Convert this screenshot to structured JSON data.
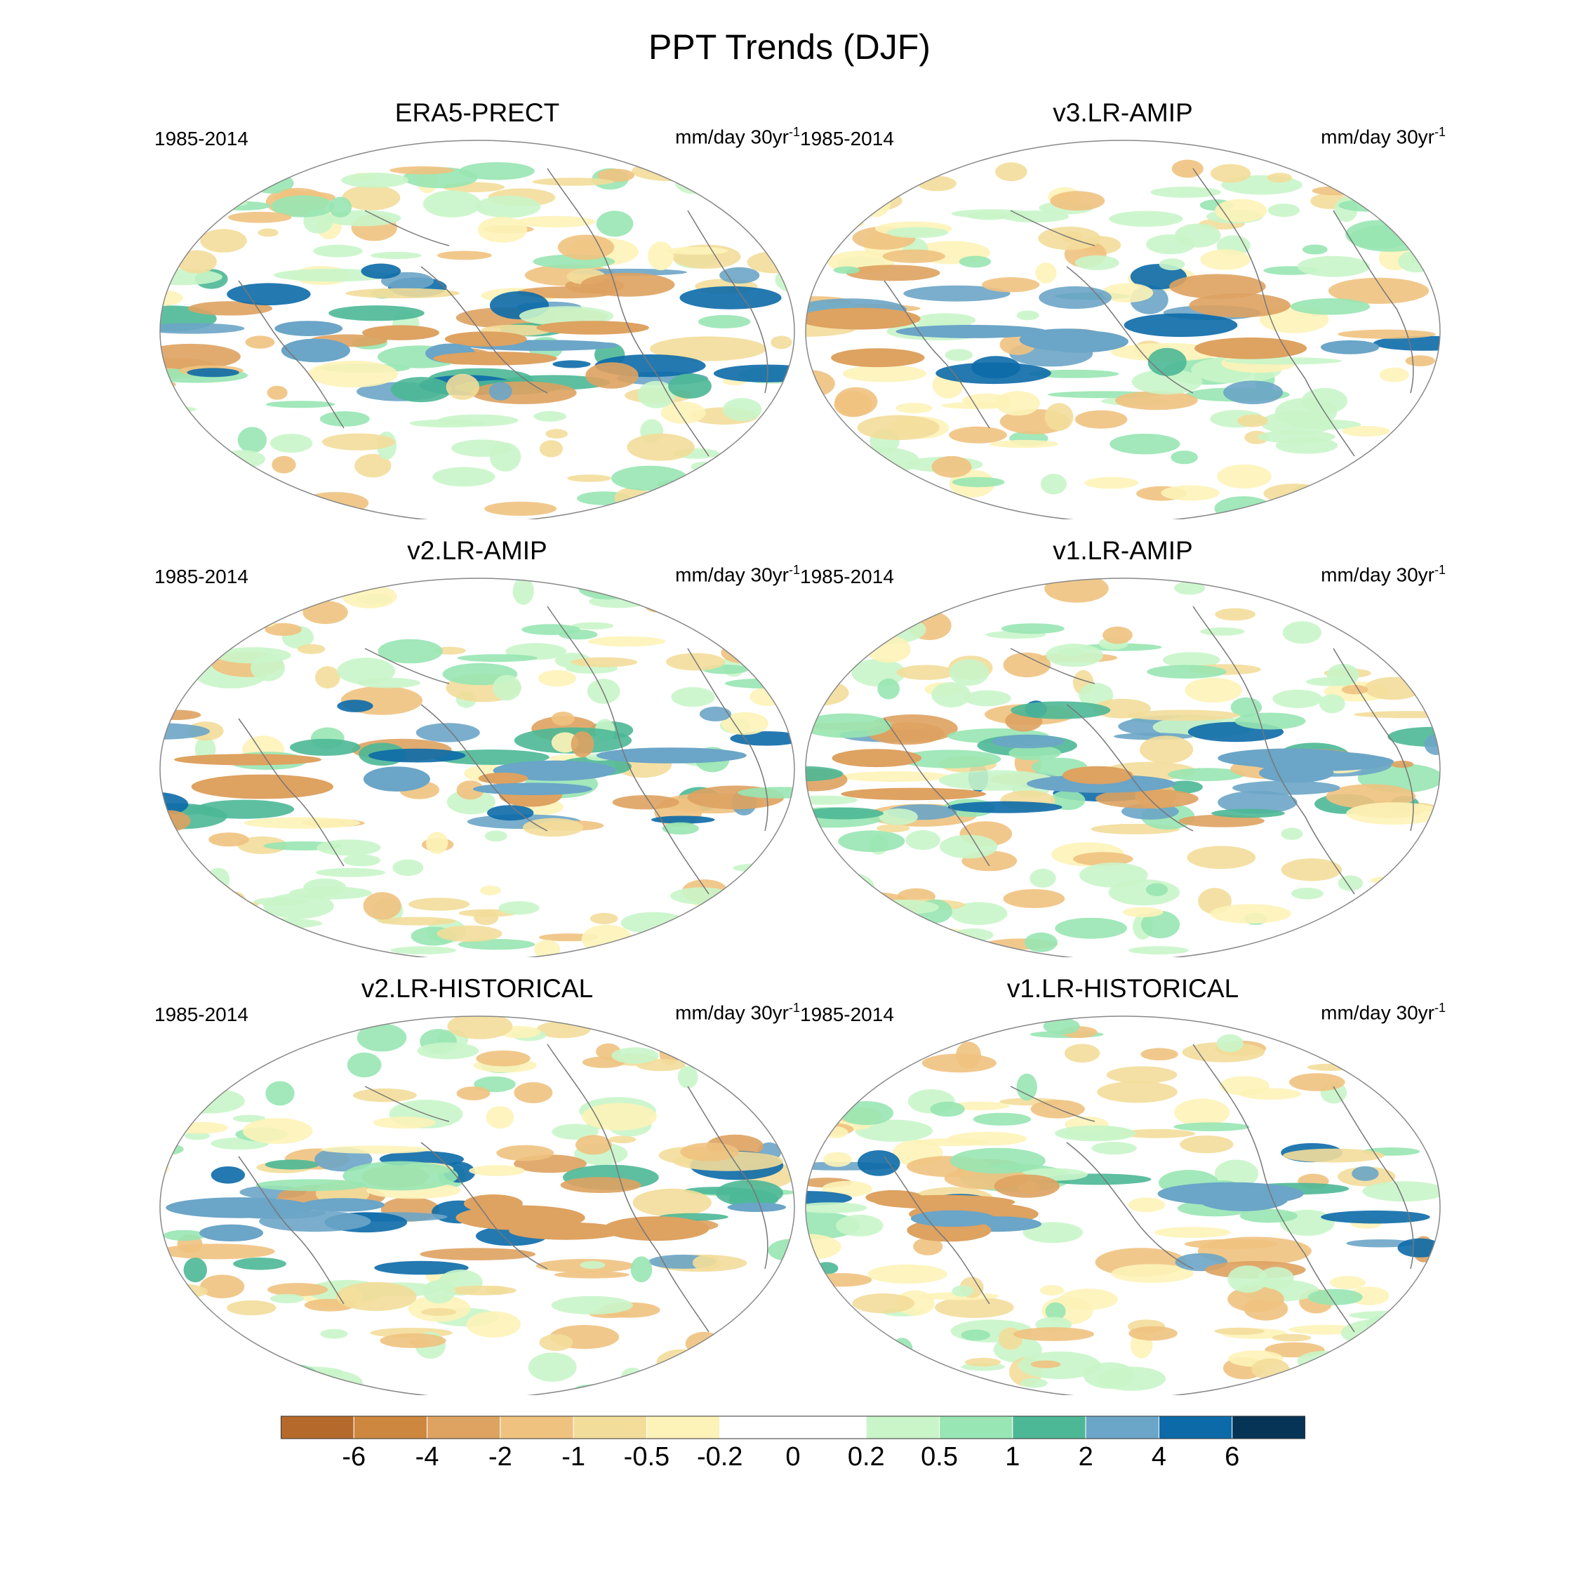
{
  "title": "PPT Trends (DJF)",
  "panels": [
    {
      "name": "ERA5-PRECT",
      "period": "1985-2014",
      "units": "mm/day 30yr",
      "units_sup": "-1"
    },
    {
      "name": "v3.LR-AMIP",
      "period": "1985-2014",
      "units": "mm/day 30yr",
      "units_sup": "-1"
    },
    {
      "name": "v2.LR-AMIP",
      "period": "1985-2014",
      "units": "mm/day 30yr",
      "units_sup": "-1"
    },
    {
      "name": "v1.LR-AMIP",
      "period": "1985-2014",
      "units": "mm/day 30yr",
      "units_sup": "-1"
    },
    {
      "name": "v2.LR-HISTORICAL",
      "period": "1985-2014",
      "units": "mm/day 30yr",
      "units_sup": "-1"
    },
    {
      "name": "v1.LR-HISTORICAL",
      "period": "1985-2014",
      "units": "mm/day 30yr",
      "units_sup": "-1"
    }
  ],
  "colorbar": {
    "labels": [
      "-6",
      "-4",
      "-2",
      "-1",
      "-0.5",
      "-0.2",
      "0",
      "0.2",
      "0.5",
      "1",
      "2",
      "4",
      "6"
    ],
    "colors": [
      "#b5692b",
      "#cd873f",
      "#dea261",
      "#efc27f",
      "#f3dd9a",
      "#fdf3b8",
      "#ffffff",
      "#ffffff",
      "#c9f5c9",
      "#98e6b3",
      "#4db896",
      "#6ba5c7",
      "#0c6aa8",
      "#063456"
    ]
  }
}
